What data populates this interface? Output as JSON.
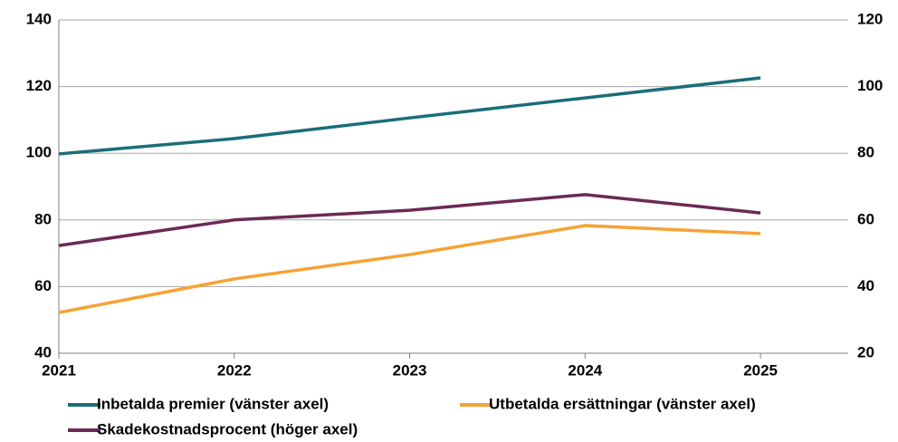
{
  "chart_data": {
    "type": "line",
    "x": [
      2021,
      2022,
      2023,
      2024,
      2025
    ],
    "xlim": [
      2021,
      2025.5
    ],
    "xticks": [
      2021,
      2022,
      2023,
      2024,
      2025
    ],
    "ylim": [
      40,
      140
    ],
    "yticks": [
      40,
      60,
      80,
      100,
      120,
      140
    ],
    "y2lim": [
      20,
      120
    ],
    "y2ticks": [
      20,
      40,
      60,
      80,
      100,
      120
    ],
    "grid": true,
    "legend": "bottom",
    "series": [
      {
        "name": "Inbetalda premier (vänster axel)",
        "color": "#1a6e7a",
        "values": [
          99.8,
          104.4,
          110.6,
          116.6,
          122.6
        ]
      },
      {
        "name": "Utbetalda ersättningar (vänster axel)",
        "color": "#f7a234",
        "values": [
          52.2,
          62.3,
          69.6,
          78.3,
          75.9
        ]
      },
      {
        "name": "Skadekostnadsprocent (höger axel)",
        "color": "#6b2a55",
        "axis": "y2",
        "values": [
          52.3,
          60.0,
          62.9,
          67.6,
          62.1
        ]
      }
    ]
  }
}
